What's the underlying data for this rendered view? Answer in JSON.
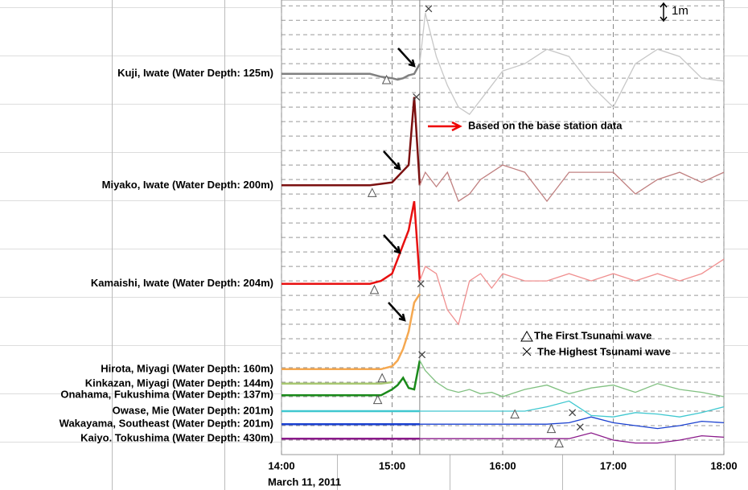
{
  "chart_data": {
    "type": "line",
    "x_label": "March 11, 2011",
    "xlim": [
      14,
      18
    ],
    "xticks": [
      {
        "value": 14,
        "label": "14:00"
      },
      {
        "value": 15,
        "label": "15:00"
      },
      {
        "value": 16,
        "label": "16:00"
      },
      {
        "value": 17,
        "label": "17:00"
      },
      {
        "value": 18,
        "label": "18:00"
      }
    ],
    "ylim": [
      0,
      31.4
    ],
    "scale_bar": {
      "value": 1,
      "label": "1m"
    },
    "light_from": 15.25,
    "annotation": "Based on the base station data",
    "legend": {
      "first": "The First Tsunami wave",
      "highest": "The Highest Tsunami wave"
    },
    "x": [
      14.0,
      14.2,
      14.4,
      14.6,
      14.8,
      14.9,
      15.0,
      15.05,
      15.1,
      15.15,
      15.2,
      15.25,
      15.3,
      15.4,
      15.5,
      15.6,
      15.7,
      15.8,
      15.9,
      16.0,
      16.2,
      16.4,
      16.6,
      16.8,
      17.0,
      17.2,
      17.4,
      17.6,
      17.8,
      18.0
    ],
    "series": [
      {
        "name": "Kuji, Iwate (Water Depth: 125m)",
        "color": "#808080",
        "light_color": "#c8c8c8",
        "values": [
          26.3,
          26.3,
          26.3,
          26.3,
          26.3,
          26.1,
          26.0,
          25.9,
          26.0,
          26.2,
          26.3,
          27.0,
          30.5,
          27.5,
          25.5,
          24.0,
          23.5,
          24.5,
          25.5,
          26.5,
          27.0,
          28.0,
          27.5,
          25.5,
          24.0,
          27.0,
          28.0,
          27.5,
          26.0,
          25.8
        ],
        "first_wave": [
          14.95,
          25.9
        ],
        "highest_wave": [
          15.33,
          30.8
        ]
      },
      {
        "name": "Miyako, Iwate (Water Depth: 200m)",
        "color": "#7b1010",
        "light_color": "#c08080",
        "values": [
          18.6,
          18.6,
          18.6,
          18.6,
          18.6,
          18.7,
          18.8,
          19.2,
          19.6,
          20.0,
          24.7,
          18.6,
          19.5,
          18.5,
          19.5,
          17.5,
          18.0,
          19.0,
          19.5,
          20.0,
          19.5,
          17.5,
          19.5,
          19.5,
          19.5,
          18.0,
          19.0,
          19.5,
          18.8,
          19.5
        ],
        "first_wave": [
          14.82,
          18.1
        ],
        "highest_wave": [
          15.22,
          24.7
        ]
      },
      {
        "name": "Kamaishi, Iwate (Water Depth: 204m)",
        "color": "#e81010",
        "light_color": "#f09090",
        "values": [
          11.8,
          11.8,
          11.8,
          11.8,
          11.8,
          12.0,
          12.5,
          13.5,
          14.5,
          15.5,
          17.5,
          12.0,
          13.0,
          12.5,
          10.0,
          9.0,
          12.0,
          12.5,
          11.5,
          12.5,
          12.0,
          12.0,
          12.5,
          12.0,
          12.5,
          12.0,
          12.5,
          12.0,
          12.5,
          13.5
        ],
        "first_wave": [
          14.84,
          11.4
        ],
        "highest_wave": [
          15.26,
          11.8
        ]
      },
      {
        "name": "Hirota, Miyagi (Water Depth: 160m)",
        "color": "#f5a850",
        "light_color": "#f5a850",
        "values": [
          5.9,
          5.9,
          5.9,
          5.9,
          5.9,
          5.9,
          6.1,
          6.5,
          7.3,
          8.5,
          10.5,
          11.1,
          null,
          null,
          null,
          null,
          null,
          null,
          null,
          null,
          null,
          null,
          null,
          null,
          null,
          null,
          null,
          null,
          null,
          null
        ],
        "first_wave": [
          14.91,
          5.3
        ]
      },
      {
        "name": "Kinkazan, Miyagi (Water Depth: 144m)",
        "color": "#a8c870",
        "light_color": "#a8c870",
        "values": [
          4.9,
          4.9,
          4.9,
          4.9,
          4.9,
          4.9,
          5.0,
          null,
          null,
          null,
          null,
          null,
          null,
          null,
          null,
          null,
          null,
          null,
          null,
          null,
          null,
          null,
          null,
          null,
          null,
          null,
          null,
          null,
          null,
          null
        ]
      },
      {
        "name": "Onahama, Fukushima (Water Depth: 137m)",
        "color": "#1a8a1a",
        "light_color": "#80c080",
        "values": [
          4.1,
          4.1,
          4.1,
          4.1,
          4.1,
          4.1,
          4.5,
          4.8,
          5.3,
          4.6,
          4.5,
          6.5,
          5.8,
          5.0,
          4.5,
          4.3,
          4.5,
          4.2,
          4.3,
          4.0,
          4.5,
          4.8,
          4.2,
          4.6,
          4.8,
          4.3,
          4.9,
          4.5,
          4.3,
          4.0
        ],
        "first_wave": [
          14.87,
          3.8
        ],
        "highest_wave": [
          15.27,
          6.9
        ]
      },
      {
        "name": "Owase, Mie (Water Depth: 201m)",
        "color": "#40c8d0",
        "light_color": "#40c8d0",
        "values": [
          3.0,
          3.0,
          3.0,
          3.0,
          3.0,
          3.0,
          3.0,
          3.0,
          3.0,
          3.0,
          3.0,
          3.0,
          3.0,
          3.0,
          3.0,
          3.0,
          3.0,
          3.0,
          3.0,
          3.0,
          3.0,
          3.3,
          3.7,
          2.7,
          2.6,
          2.9,
          2.8,
          2.6,
          2.9,
          3.3
        ],
        "first_wave": [
          16.11,
          2.8
        ],
        "highest_wave": [
          16.63,
          2.9
        ]
      },
      {
        "name": "Wakayama, Southeast (Water Depth: 201m)",
        "color": "#1a40d0",
        "light_color": "#1a40d0",
        "values": [
          2.1,
          2.1,
          2.1,
          2.1,
          2.1,
          2.1,
          2.1,
          2.1,
          2.1,
          2.1,
          2.1,
          2.1,
          2.1,
          2.1,
          2.1,
          2.1,
          2.1,
          2.1,
          2.1,
          2.1,
          2.1,
          2.1,
          2.2,
          2.6,
          2.2,
          2.0,
          1.8,
          2.0,
          2.3,
          2.2
        ],
        "first_wave": [
          16.44,
          1.8
        ],
        "highest_wave": [
          16.7,
          1.9
        ]
      },
      {
        "name": "Kaiyo. Tokushima (Water Depth: 430m)",
        "color": "#8a1a8a",
        "light_color": "#8a1a8a",
        "values": [
          1.1,
          1.1,
          1.1,
          1.1,
          1.1,
          1.1,
          1.1,
          1.1,
          1.1,
          1.1,
          1.1,
          1.1,
          1.1,
          1.1,
          1.1,
          1.1,
          1.1,
          1.1,
          1.1,
          1.1,
          1.1,
          1.1,
          1.1,
          1.5,
          1.0,
          0.8,
          0.8,
          1.0,
          1.3,
          1.2
        ],
        "first_wave": [
          16.51,
          0.8
        ]
      }
    ]
  }
}
